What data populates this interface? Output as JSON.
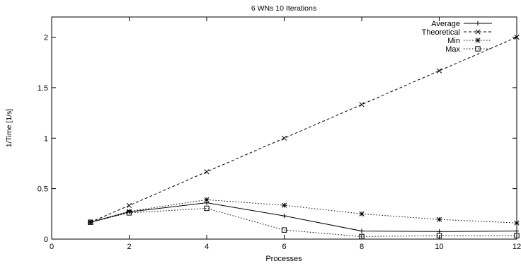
{
  "chart_data": {
    "type": "line",
    "title": "6 WNs 10 Iterations",
    "xlabel": "Processes",
    "ylabel": "1/Time [1/s]",
    "xlim": [
      0,
      12
    ],
    "ylim": [
      0,
      2.2
    ],
    "xticks": [
      0,
      2,
      4,
      6,
      8,
      10,
      12
    ],
    "yticks": [
      0,
      0.5,
      1,
      1.5,
      2
    ],
    "xtick_labels": [
      "0",
      "2",
      "4",
      "6",
      "8",
      "10",
      "12"
    ],
    "ytick_labels": [
      "0",
      "0.5",
      "1",
      "1.5",
      "2"
    ],
    "grid": false,
    "legend_position": "top-right",
    "x": [
      1,
      2,
      4,
      6,
      8,
      10,
      12
    ],
    "series": [
      {
        "name": "Average",
        "values": [
          0.167,
          0.27,
          0.36,
          0.23,
          0.08,
          0.075,
          0.08
        ],
        "line": "solid",
        "marker": "plus"
      },
      {
        "name": "Theoretical",
        "values": [
          0.167,
          0.333,
          0.667,
          1.0,
          1.333,
          1.667,
          2.0
        ],
        "line": "dashed",
        "marker": "x"
      },
      {
        "name": "Min",
        "values": [
          0.167,
          0.275,
          0.39,
          0.335,
          0.25,
          0.195,
          0.16
        ],
        "line": "dotted",
        "marker": "asterisk"
      },
      {
        "name": "Max",
        "values": [
          0.167,
          0.26,
          0.305,
          0.09,
          0.025,
          0.035,
          0.035
        ],
        "line": "dotted",
        "marker": "square"
      }
    ]
  }
}
